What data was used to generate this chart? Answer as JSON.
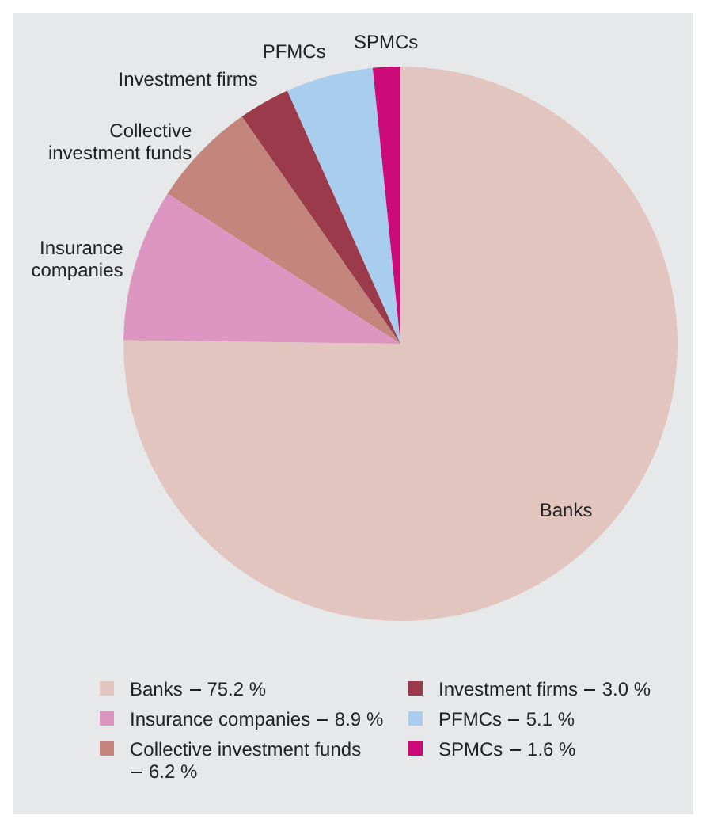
{
  "chart_data": {
    "type": "pie",
    "categories": [
      "Banks",
      "Insurance companies",
      "Collective investment funds",
      "Investment firms",
      "PFMCs",
      "SPMCs"
    ],
    "values": [
      75.2,
      8.9,
      6.2,
      3.0,
      5.1,
      1.6
    ],
    "colors": [
      "#e2c5bf",
      "#dd95c1",
      "#c4857d",
      "#9b3a4b",
      "#a9cdec",
      "#cc0a78"
    ],
    "value_labels": [
      "75.2 %",
      "8.9 %",
      "6.2 %",
      "3.0 %",
      "5.1 %",
      "1.6 %"
    ],
    "legend": "bottom"
  }
}
